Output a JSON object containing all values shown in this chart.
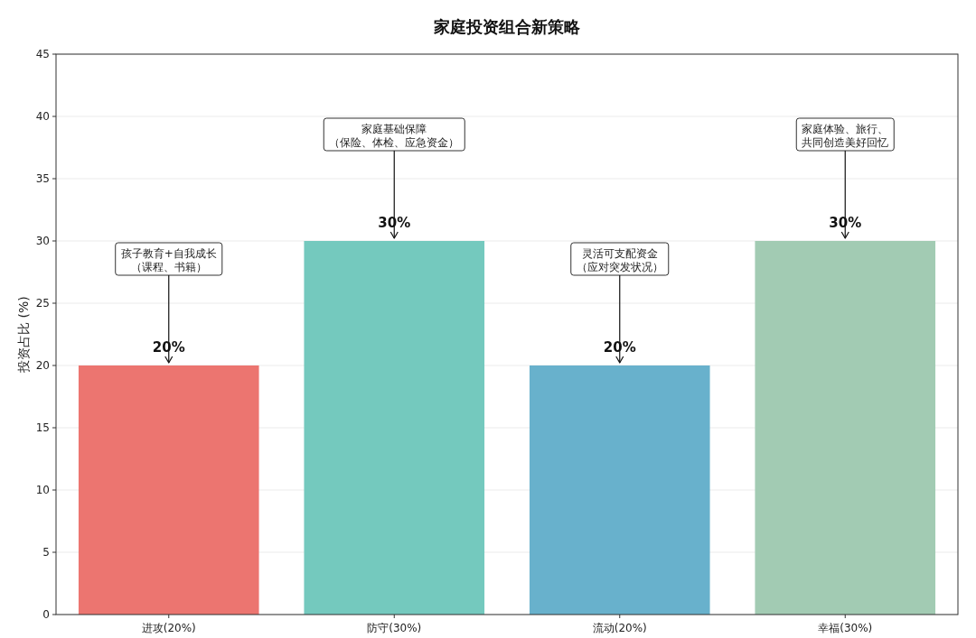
{
  "chart_data": {
    "type": "bar",
    "title": "家庭投资组合新策略",
    "ylabel": "投资占比 (%)",
    "categories": [
      "进攻(20%)",
      "防守(30%)",
      "流动(20%)",
      "幸福(30%)"
    ],
    "values": [
      20,
      30,
      20,
      30
    ],
    "colors": [
      "#ec7570",
      "#74c9be",
      "#68b1cc",
      "#a2cbb3"
    ],
    "value_labels": [
      "20%",
      "30%",
      "20%",
      "30%"
    ],
    "ylim": [
      0,
      45
    ],
    "yticks": [
      0,
      5,
      10,
      15,
      20,
      25,
      30,
      35,
      40,
      45
    ],
    "grid": "y",
    "annotations": [
      {
        "text": "孩子教育+自我成长（课程、书籍）",
        "x": "进攻(20%)",
        "y": 20
      },
      {
        "text": "家庭基础保障（保险、体检、应急资金）",
        "x": "防守(30%)",
        "y": 30
      },
      {
        "text": "灵活可支配资金（应对突发状况）",
        "x": "流动(20%)",
        "y": 20
      },
      {
        "text": "家庭体验、旅行、共同创造美好回忆",
        "x": "幸福(30%)",
        "y": 30
      }
    ]
  }
}
